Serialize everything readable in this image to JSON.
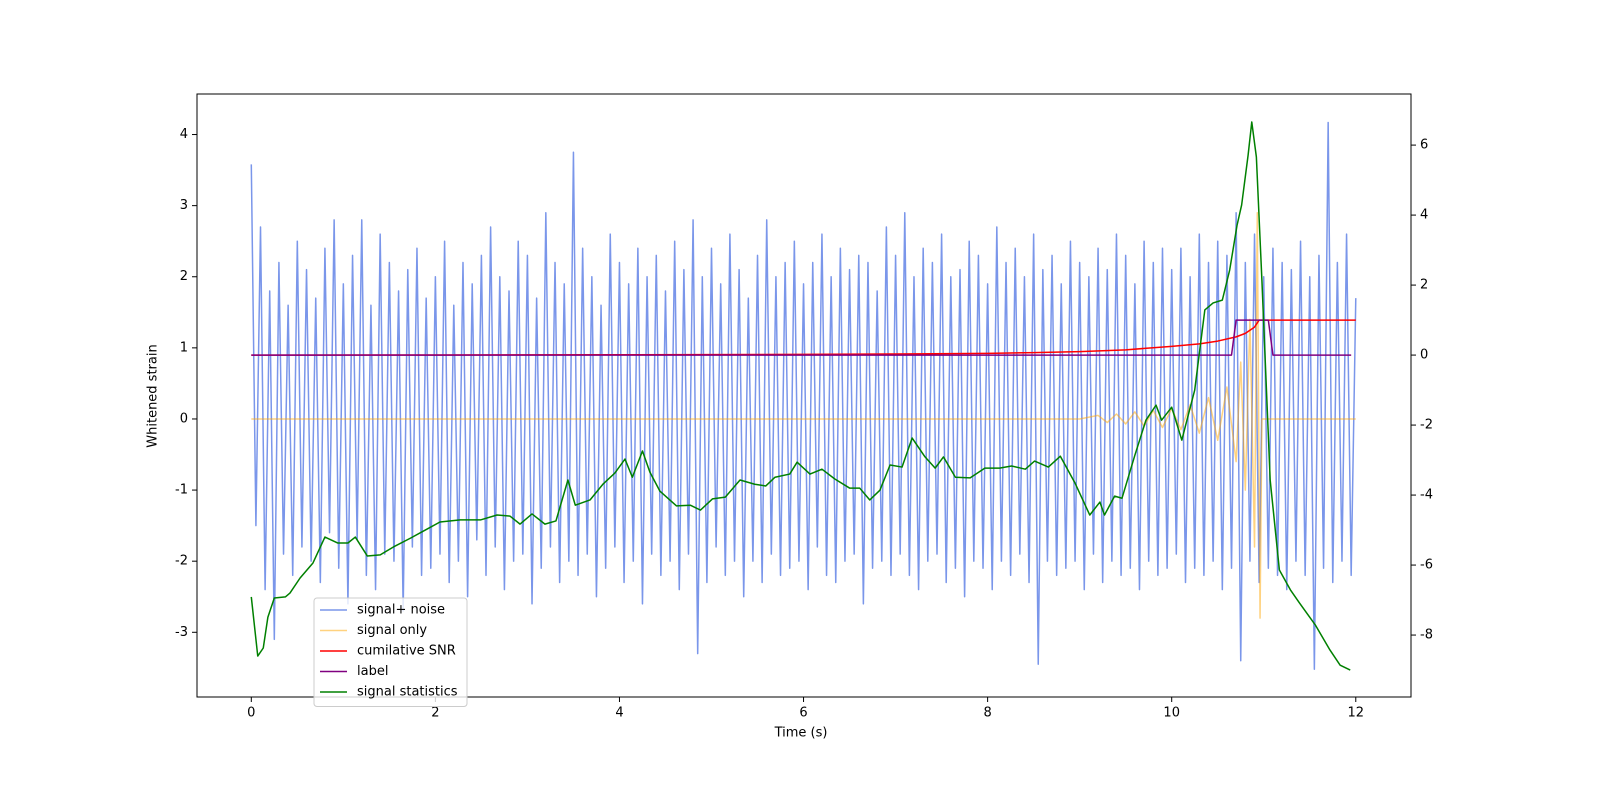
{
  "chart_data": {
    "type": "line",
    "xlabel": "Time (s)",
    "ylabel": "Whitened strain",
    "xlim": [
      -0.59,
      12.6
    ],
    "xticks": [
      0,
      2,
      4,
      6,
      8,
      10,
      12
    ],
    "ylim": [
      -3.91,
      4.57
    ],
    "yticks": [
      -3,
      -2,
      -1,
      0,
      1,
      2,
      3,
      4
    ],
    "y2lim": [
      -9.77,
      7.46
    ],
    "y2ticks": [
      -8,
      -6,
      -4,
      -2,
      0,
      2,
      4,
      6
    ],
    "legend_loc": "lower left",
    "series": [
      {
        "name": "signal+ noise",
        "color": "#4169e1",
        "alpha": 0.7,
        "x": [
          0,
          0.05,
          0.1,
          0.15,
          0.2,
          0.25,
          0.3,
          0.35,
          0.4,
          0.45,
          0.5,
          0.55,
          0.6,
          0.65,
          0.7,
          0.75,
          0.8,
          0.85,
          0.9,
          0.95,
          1,
          1.05,
          1.1,
          1.15,
          1.2,
          1.25,
          1.3,
          1.35,
          1.4,
          1.45,
          1.5,
          1.55,
          1.6,
          1.65,
          1.7,
          1.75,
          1.8,
          1.85,
          1.9,
          1.95,
          2,
          2.05,
          2.1,
          2.15,
          2.2,
          2.25,
          2.3,
          2.35,
          2.4,
          2.45,
          2.5,
          2.55,
          2.6,
          2.65,
          2.7,
          2.75,
          2.8,
          2.85,
          2.9,
          2.95,
          3,
          3.05,
          3.1,
          3.15,
          3.2,
          3.25,
          3.3,
          3.35,
          3.4,
          3.45,
          3.5,
          3.55,
          3.6,
          3.65,
          3.7,
          3.75,
          3.8,
          3.85,
          3.9,
          3.95,
          4,
          4.05,
          4.1,
          4.15,
          4.2,
          4.25,
          4.3,
          4.35,
          4.4,
          4.45,
          4.5,
          4.55,
          4.6,
          4.65,
          4.7,
          4.75,
          4.8,
          4.85,
          4.9,
          4.95,
          5,
          5.05,
          5.1,
          5.15,
          5.2,
          5.25,
          5.3,
          5.35,
          5.4,
          5.45,
          5.5,
          5.55,
          5.6,
          5.65,
          5.7,
          5.75,
          5.8,
          5.85,
          5.9,
          5.95,
          6,
          6.05,
          6.1,
          6.15,
          6.2,
          6.25,
          6.3,
          6.35,
          6.4,
          6.45,
          6.5,
          6.55,
          6.6,
          6.65,
          6.7,
          6.75,
          6.8,
          6.85,
          6.9,
          6.95,
          7,
          7.05,
          7.1,
          7.15,
          7.2,
          7.25,
          7.3,
          7.35,
          7.4,
          7.45,
          7.5,
          7.55,
          7.6,
          7.65,
          7.7,
          7.75,
          7.8,
          7.85,
          7.9,
          7.95,
          8,
          8.05,
          8.1,
          8.15,
          8.2,
          8.25,
          8.3,
          8.35,
          8.4,
          8.45,
          8.5,
          8.55,
          8.6,
          8.65,
          8.7,
          8.75,
          8.8,
          8.85,
          8.9,
          8.95,
          9,
          9.05,
          9.1,
          9.15,
          9.2,
          9.25,
          9.3,
          9.35,
          9.4,
          9.45,
          9.5,
          9.55,
          9.6,
          9.65,
          9.7,
          9.75,
          9.8,
          9.85,
          9.9,
          9.95,
          10,
          10.05,
          10.1,
          10.15,
          10.2,
          10.25,
          10.3,
          10.35,
          10.4,
          10.45,
          10.5,
          10.55,
          10.6,
          10.65,
          10.7,
          10.75,
          10.8,
          10.85,
          10.9,
          10.95,
          11,
          11.05,
          11.1,
          11.15,
          11.2,
          11.25,
          11.3,
          11.35,
          11.4,
          11.45,
          11.5,
          11.55,
          11.6,
          11.65,
          11.7,
          11.75,
          11.8,
          11.85,
          11.9,
          11.95,
          12
        ],
        "values": [
          3.58,
          -1.5,
          2.7,
          -2.4,
          1.8,
          -3.1,
          2.2,
          -1.9,
          1.6,
          -2.2,
          2.5,
          -1.8,
          2.1,
          -2.0,
          1.7,
          -2.3,
          2.4,
          -1.6,
          2.8,
          -2.1,
          1.9,
          -2.6,
          2.3,
          -1.7,
          2.8,
          -2.2,
          1.6,
          -2.4,
          2.6,
          -1.9,
          2.2,
          -2.0,
          1.8,
          -2.7,
          2.1,
          -1.8,
          2.4,
          -2.2,
          1.7,
          -2.1,
          2.0,
          -1.9,
          2.5,
          -2.3,
          1.6,
          -2.0,
          2.2,
          -2.5,
          1.9,
          -1.7,
          2.3,
          -2.2,
          2.7,
          -1.8,
          2.0,
          -2.4,
          1.8,
          -2.0,
          2.5,
          -1.9,
          2.3,
          -2.6,
          1.7,
          -2.1,
          2.9,
          -1.8,
          2.2,
          -2.3,
          1.9,
          -2.0,
          3.75,
          -2.2,
          2.4,
          -1.9,
          2.0,
          -2.5,
          1.6,
          -2.1,
          2.6,
          -1.8,
          2.2,
          -2.3,
          1.9,
          -2.0,
          2.4,
          -2.6,
          2.0,
          -1.9,
          2.3,
          -2.2,
          1.8,
          -2.0,
          2.5,
          -2.4,
          2.1,
          -1.9,
          2.8,
          -3.3,
          2.0,
          -2.3,
          2.4,
          -1.8,
          1.9,
          -2.2,
          2.6,
          -2.0,
          2.1,
          -2.5,
          1.7,
          -2.0,
          2.3,
          -2.3,
          2.8,
          -1.9,
          2.0,
          -2.2,
          2.2,
          -2.1,
          2.5,
          -2.0,
          1.9,
          -2.4,
          2.2,
          -1.8,
          2.6,
          -2.2,
          2.0,
          -2.3,
          2.4,
          -2.0,
          2.1,
          -1.9,
          2.3,
          -2.6,
          2.2,
          -2.1,
          1.8,
          -2.0,
          2.7,
          -2.2,
          2.3,
          -1.9,
          2.9,
          -2.2,
          2.0,
          -2.4,
          2.4,
          -2.0,
          2.2,
          -1.9,
          2.6,
          -2.3,
          2.0,
          -2.1,
          2.1,
          -2.5,
          2.5,
          -2.0,
          2.3,
          -2.1,
          1.9,
          -2.4,
          2.7,
          -2.0,
          2.2,
          -2.2,
          2.4,
          -1.9,
          2.0,
          -2.3,
          2.6,
          -3.45,
          2.1,
          -2.0,
          2.3,
          -2.2,
          1.9,
          -2.1,
          2.5,
          -2.0,
          2.2,
          -2.4,
          2.0,
          -1.9,
          2.4,
          -2.3,
          2.1,
          -2.0,
          2.6,
          -2.2,
          2.3,
          -2.1,
          1.9,
          -2.4,
          2.5,
          -2.0,
          2.2,
          -2.2,
          2.4,
          -2.1,
          2.1,
          -1.9,
          2.4,
          -2.3,
          2.0,
          -2.1,
          2.6,
          -2.2,
          2.2,
          -2.0,
          2.5,
          -2.4,
          2.3,
          -2.1,
          2.9,
          -3.4,
          2.2,
          -2.0,
          2.6,
          -2.3,
          2.0,
          -2.1,
          2.4,
          -2.2,
          2.2,
          -2.4,
          2.1,
          -2.0,
          2.5,
          -2.2,
          2.0,
          -3.52,
          2.3,
          -2.1,
          4.17,
          -2.3,
          2.2,
          -2.0,
          2.6,
          -2.2,
          1.7
        ]
      },
      {
        "name": "signal only",
        "color": "#ffa500",
        "alpha": 0.5,
        "x": [
          0,
          9.0,
          9.2,
          9.3,
          9.4,
          9.5,
          9.6,
          9.7,
          9.8,
          9.9,
          10.0,
          10.1,
          10.2,
          10.3,
          10.4,
          10.5,
          10.6,
          10.7,
          10.75,
          10.8,
          10.85,
          10.9,
          10.93,
          10.96,
          10.98,
          11.0,
          12
        ],
        "values": [
          0,
          0,
          0.05,
          -0.05,
          0.07,
          -0.07,
          0.1,
          -0.1,
          0.12,
          -0.12,
          0.15,
          -0.15,
          0.2,
          -0.2,
          0.3,
          -0.3,
          0.45,
          -0.6,
          0.8,
          -1.0,
          1.4,
          -1.8,
          2.9,
          -2.8,
          0,
          0,
          0
        ]
      },
      {
        "name": "cumilative SNR",
        "color": "#ff0000",
        "axis": "y2",
        "x": [
          0,
          2,
          4,
          6,
          7,
          8,
          8.5,
          9,
          9.5,
          10,
          10.3,
          10.5,
          10.7,
          10.8,
          10.9,
          10.95,
          11,
          12
        ],
        "values": [
          0,
          0.003,
          0.01,
          0.02,
          0.03,
          0.05,
          0.07,
          0.1,
          0.15,
          0.25,
          0.32,
          0.4,
          0.52,
          0.62,
          0.8,
          1,
          1,
          1
        ]
      },
      {
        "name": "label",
        "color": "#800080",
        "axis": "y2",
        "x": [
          0,
          10.65,
          10.7,
          11.05,
          11.1,
          11.95
        ],
        "values": [
          0,
          0,
          1,
          1,
          0,
          0
        ]
      },
      {
        "name": "signal statistics",
        "color": "#008000",
        "axis": "y2",
        "x": [
          0,
          0.07,
          0.13,
          0.18,
          0.25,
          0.37,
          0.42,
          0.53,
          0.67,
          0.8,
          0.94,
          1.05,
          1.13,
          1.26,
          1.4,
          1.56,
          1.73,
          1.89,
          2.05,
          2.27,
          2.49,
          2.67,
          2.81,
          2.92,
          3.05,
          3.19,
          3.31,
          3.44,
          3.52,
          3.68,
          3.82,
          3.95,
          4.06,
          4.14,
          4.25,
          4.33,
          4.44,
          4.62,
          4.77,
          4.88,
          5.01,
          5.15,
          5.31,
          5.47,
          5.59,
          5.69,
          5.85,
          5.93,
          6.07,
          6.2,
          6.34,
          6.5,
          6.61,
          6.72,
          6.83,
          6.94,
          7.07,
          7.18,
          7.32,
          7.43,
          7.52,
          7.65,
          7.81,
          7.97,
          8.13,
          8.26,
          8.41,
          8.51,
          8.66,
          8.79,
          8.95,
          9.11,
          9.22,
          9.27,
          9.38,
          9.46,
          9.6,
          9.72,
          9.83,
          9.89,
          10.0,
          10.11,
          10.25,
          10.36,
          10.45,
          10.55,
          10.63,
          10.71,
          10.76,
          10.83,
          10.87,
          10.92,
          10.98,
          11.07,
          11.17,
          11.29,
          11.39,
          11.56,
          11.72,
          11.83,
          11.94
        ],
        "values": [
          -6.91,
          -8.6,
          -8.37,
          -7.49,
          -6.94,
          -6.91,
          -6.8,
          -6.37,
          -5.94,
          -5.2,
          -5.37,
          -5.37,
          -5.2,
          -5.74,
          -5.71,
          -5.46,
          -5.23,
          -5.0,
          -4.77,
          -4.71,
          -4.71,
          -4.57,
          -4.6,
          -4.83,
          -4.54,
          -4.83,
          -4.74,
          -3.57,
          -4.29,
          -4.14,
          -3.69,
          -3.37,
          -2.97,
          -3.49,
          -2.74,
          -3.34,
          -3.89,
          -4.31,
          -4.29,
          -4.43,
          -4.11,
          -4.06,
          -3.57,
          -3.69,
          -3.74,
          -3.49,
          -3.4,
          -3.06,
          -3.4,
          -3.26,
          -3.54,
          -3.8,
          -3.8,
          -4.14,
          -3.86,
          -3.14,
          -3.2,
          -2.37,
          -2.91,
          -3.23,
          -2.91,
          -3.49,
          -3.51,
          -3.23,
          -3.23,
          -3.17,
          -3.26,
          -3.03,
          -3.2,
          -2.89,
          -3.66,
          -4.57,
          -4.2,
          -4.57,
          -4.03,
          -4.09,
          -2.86,
          -1.86,
          -1.43,
          -1.86,
          -1.49,
          -2.43,
          -1.0,
          1.29,
          1.49,
          1.57,
          2.43,
          3.71,
          4.29,
          5.71,
          6.66,
          5.66,
          2.14,
          -3.57,
          -6.14,
          -6.71,
          -7.09,
          -7.71,
          -8.43,
          -8.86,
          -9.0
        ]
      }
    ]
  }
}
